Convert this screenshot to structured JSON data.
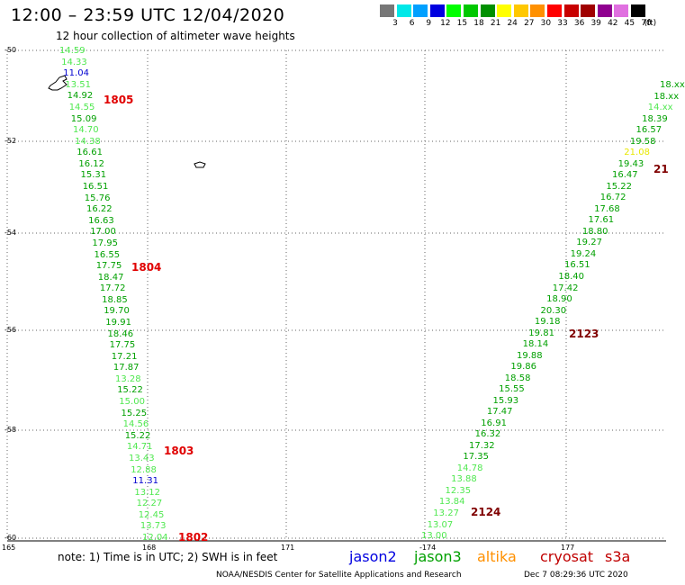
{
  "title": "12:00 – 23:59 UTC 12/04/2020",
  "subtitle": "12 hour collection of altimeter wave heights",
  "scale": {
    "colors": [
      "#777777",
      "#00e8e8",
      "#00a0ff",
      "#0000e0",
      "#00ff00",
      "#00c800",
      "#009000",
      "#ffff00",
      "#ffc800",
      "#ff9000",
      "#ff0000",
      "#c80000",
      "#a00000",
      "#900090",
      "#e070e0",
      "#000000"
    ],
    "labels": [
      "3",
      "6",
      "9",
      "12",
      "15",
      "18",
      "21",
      "24",
      "27",
      "30",
      "33",
      "36",
      "39",
      "42",
      "45",
      "70"
    ],
    "unit": "(ft)"
  },
  "lat_labels": [
    "-50",
    "-52",
    "-54",
    "-56",
    "-58",
    "-60"
  ],
  "lon_labels": [
    "165",
    "168",
    "171",
    "-174",
    "177"
  ],
  "west_track": {
    "values": [
      "14.59",
      "14.33",
      "11.04",
      "13.51",
      "14.92",
      "14.55",
      "15.09",
      "14.70",
      "14.38",
      "16.61",
      "16.12",
      "15.31",
      "16.51",
      "15.76",
      "16.22",
      "16.63",
      "17.00",
      "17.95",
      "16.55",
      "17.75",
      "18.47",
      "17.72",
      "18.85",
      "19.70",
      "19.91",
      "18.46",
      "17.75",
      "17.21",
      "17.87",
      "13.28",
      "15.22",
      "15.00",
      "15.25",
      "14.56",
      "15.22",
      "14.71",
      "13.43",
      "12.88",
      "11.31",
      "13.12",
      "12.27",
      "12.45",
      "13.73",
      "12.04"
    ],
    "colors": [
      "#50e850",
      "#50e850",
      "#0000d0",
      "#50e850",
      "#00a000",
      "#50e850",
      "#00a000",
      "#50e850",
      "#50e850",
      "#00a000",
      "#00a000",
      "#00a000",
      "#00a000",
      "#00a000",
      "#00a000",
      "#00a000",
      "#00a000",
      "#00a000",
      "#00a000",
      "#00a000",
      "#00a000",
      "#00a000",
      "#00a000",
      "#00a000",
      "#00a000",
      "#00a000",
      "#00a000",
      "#00a000",
      "#00a000",
      "#50e850",
      "#00a000",
      "#50e850",
      "#00a000",
      "#50e850",
      "#00a000",
      "#50e850",
      "#50e850",
      "#50e850",
      "#0000d0",
      "#50e850",
      "#50e850",
      "#50e850",
      "#50e850",
      "#50e850"
    ]
  },
  "east_track": {
    "values": [
      "18.xx",
      "18.xx",
      "14.xx",
      "18.39",
      "16.57",
      "19.58",
      "21.08",
      "19.43",
      "16.47",
      "15.22",
      "16.72",
      "17.68",
      "17.61",
      "18.80",
      "19.27",
      "19.24",
      "16.51",
      "18.40",
      "17.42",
      "18.90",
      "20.30",
      "19.18",
      "19.81",
      "18.14",
      "19.88",
      "19.86",
      "18.58",
      "15.55",
      "15.93",
      "17.47",
      "16.91",
      "16.32",
      "17.32",
      "17.35",
      "14.78",
      "13.88",
      "12.35",
      "13.84",
      "13.27",
      "13.07",
      "13.00"
    ],
    "colors": [
      "#00a000",
      "#00a000",
      "#50e850",
      "#00a000",
      "#00a000",
      "#00a000",
      "#e8e800",
      "#00a000",
      "#00a000",
      "#00a000",
      "#00a000",
      "#00a000",
      "#00a000",
      "#00a000",
      "#00a000",
      "#00a000",
      "#00a000",
      "#00a000",
      "#00a000",
      "#00a000",
      "#00a000",
      "#00a000",
      "#00a000",
      "#00a000",
      "#00a000",
      "#00a000",
      "#00a000",
      "#00a000",
      "#00a000",
      "#00a000",
      "#00a000",
      "#00a000",
      "#00a000",
      "#00a000",
      "#50e850",
      "#50e850",
      "#50e850",
      "#50e850",
      "#50e850",
      "#50e850",
      "#50e850"
    ]
  },
  "pass_labels": {
    "p1805": "1805",
    "p1804": "1804",
    "p1803": "1803",
    "p1802": "1802",
    "p2123": "2123",
    "p2124": "2124",
    "p21": "21"
  },
  "note": "note:  1) Time is in UTC;  2) SWH is in feet",
  "satellites": [
    {
      "name": "jason2",
      "color": "#0000e0"
    },
    {
      "name": "jason3",
      "color": "#00a000"
    },
    {
      "name": "altika",
      "color": "#ff9000"
    },
    {
      "name": "cryosat",
      "color": "#c00000"
    },
    {
      "name": "s3a",
      "color": "#c00000"
    }
  ],
  "credit_left": "NOAA/NESDIS Center for Satellite Applications and Research",
  "credit_right": "Dec  7 08:29:36 UTC 2020"
}
